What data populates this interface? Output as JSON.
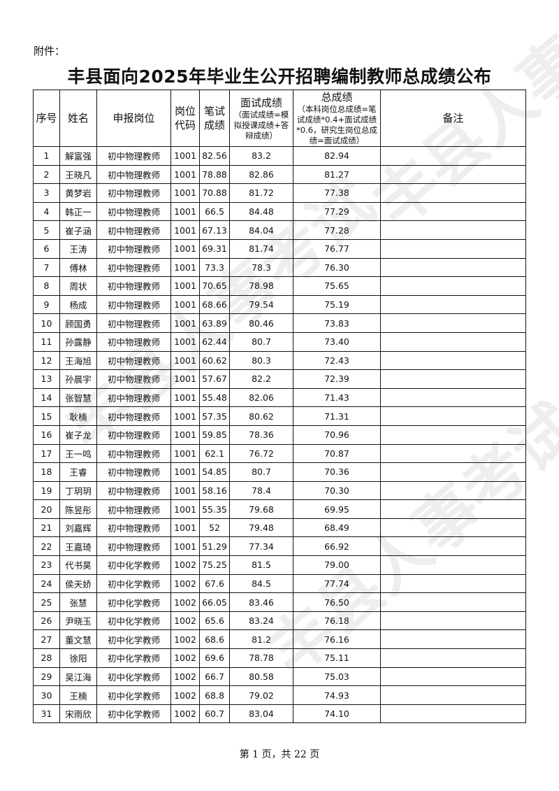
{
  "attachment_label": "附件：",
  "title": "丰县面向2025年毕业生公开招聘编制教师总成绩公布",
  "watermark": "丰县人事考试",
  "headers": {
    "seq": "序号",
    "name": "姓名",
    "position": "申报岗位",
    "code": "岗位代码",
    "written": "笔试成绩",
    "interview": "面试成绩",
    "interview_note": "（面试成绩=模拟授课成绩+答辩成绩）",
    "total": "总成绩",
    "total_note": "（本科岗位总成绩=笔试成绩*0.4+面试成绩*0.6，研究生岗位总成绩=面试成绩）",
    "remark": "备注"
  },
  "rows": [
    [
      "1",
      "解富强",
      "初中物理教师",
      "1001",
      "82.56",
      "83.2",
      "82.94",
      ""
    ],
    [
      "2",
      "王晓凡",
      "初中物理教师",
      "1001",
      "78.88",
      "82.86",
      "81.27",
      ""
    ],
    [
      "3",
      "黄梦岩",
      "初中物理教师",
      "1001",
      "70.88",
      "81.72",
      "77.38",
      ""
    ],
    [
      "4",
      "韩正一",
      "初中物理教师",
      "1001",
      "66.5",
      "84.48",
      "77.29",
      ""
    ],
    [
      "5",
      "崔子涵",
      "初中物理教师",
      "1001",
      "67.13",
      "84.04",
      "77.28",
      ""
    ],
    [
      "6",
      "王涛",
      "初中物理教师",
      "1001",
      "69.31",
      "81.74",
      "76.77",
      ""
    ],
    [
      "7",
      "傅林",
      "初中物理教师",
      "1001",
      "73.3",
      "78.3",
      "76.30",
      ""
    ],
    [
      "8",
      "周状",
      "初中物理教师",
      "1001",
      "70.65",
      "78.98",
      "75.65",
      ""
    ],
    [
      "9",
      "杨成",
      "初中物理教师",
      "1001",
      "68.66",
      "79.54",
      "75.19",
      ""
    ],
    [
      "10",
      "顾国勇",
      "初中物理教师",
      "1001",
      "63.89",
      "80.46",
      "73.83",
      ""
    ],
    [
      "11",
      "孙露静",
      "初中物理教师",
      "1001",
      "62.44",
      "80.7",
      "73.40",
      ""
    ],
    [
      "12",
      "王海旭",
      "初中物理教师",
      "1001",
      "60.62",
      "80.3",
      "72.43",
      ""
    ],
    [
      "13",
      "孙晨宇",
      "初中物理教师",
      "1001",
      "57.67",
      "82.2",
      "72.39",
      ""
    ],
    [
      "14",
      "张智慧",
      "初中物理教师",
      "1001",
      "55.48",
      "82.06",
      "71.43",
      ""
    ],
    [
      "15",
      "耿楠",
      "初中物理教师",
      "1001",
      "57.35",
      "80.62",
      "71.31",
      ""
    ],
    [
      "16",
      "崔子龙",
      "初中物理教师",
      "1001",
      "59.85",
      "78.36",
      "70.96",
      ""
    ],
    [
      "17",
      "王一鸣",
      "初中物理教师",
      "1001",
      "62.1",
      "76.72",
      "70.87",
      ""
    ],
    [
      "18",
      "王睿",
      "初中物理教师",
      "1001",
      "54.85",
      "80.7",
      "70.36",
      ""
    ],
    [
      "19",
      "丁玥玥",
      "初中物理教师",
      "1001",
      "58.16",
      "78.4",
      "70.30",
      ""
    ],
    [
      "20",
      "陈昱彤",
      "初中物理教师",
      "1001",
      "55.35",
      "79.68",
      "69.95",
      ""
    ],
    [
      "21",
      "刘嘉辉",
      "初中物理教师",
      "1001",
      "52",
      "79.48",
      "68.49",
      ""
    ],
    [
      "22",
      "王嘉琦",
      "初中物理教师",
      "1001",
      "51.29",
      "77.34",
      "66.92",
      ""
    ],
    [
      "23",
      "代书昊",
      "初中化学教师",
      "1002",
      "75.25",
      "81.5",
      "79.00",
      ""
    ],
    [
      "24",
      "侯天娇",
      "初中化学教师",
      "1002",
      "67.6",
      "84.5",
      "77.74",
      ""
    ],
    [
      "25",
      "张慧",
      "初中化学教师",
      "1002",
      "66.05",
      "83.46",
      "76.50",
      ""
    ],
    [
      "26",
      "尹晓玉",
      "初中化学教师",
      "1002",
      "65.6",
      "83.24",
      "76.18",
      ""
    ],
    [
      "27",
      "董文慧",
      "初中化学教师",
      "1002",
      "68.6",
      "81.2",
      "76.16",
      ""
    ],
    [
      "28",
      "徐阳",
      "初中化学教师",
      "1002",
      "69.6",
      "78.78",
      "75.11",
      ""
    ],
    [
      "29",
      "吴江海",
      "初中化学教师",
      "1002",
      "66.7",
      "80.58",
      "75.03",
      ""
    ],
    [
      "30",
      "王楠",
      "初中化学教师",
      "1002",
      "68.8",
      "79.02",
      "74.93",
      ""
    ],
    [
      "31",
      "宋雨欣",
      "初中化学教师",
      "1002",
      "60.7",
      "83.04",
      "74.10",
      ""
    ]
  ],
  "footer": "第 1 页，共 22 页"
}
